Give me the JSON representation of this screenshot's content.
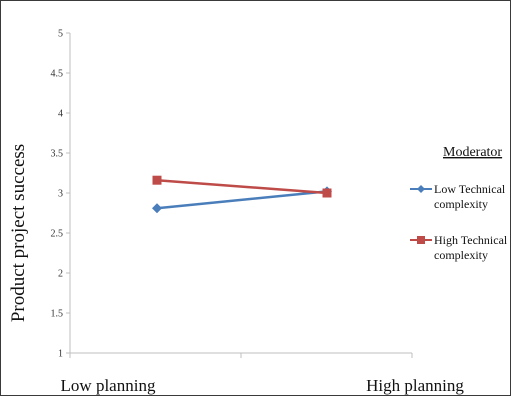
{
  "chart_data": {
    "type": "line",
    "title": "",
    "ylabel": "Product project success",
    "xlabel": "",
    "categories": [
      "Low planning",
      "High planning"
    ],
    "ylim": [
      1,
      5
    ],
    "yticks": [
      "1",
      "1.5",
      "2",
      "2.5",
      "3",
      "3.5",
      "4",
      "4.5",
      "5"
    ],
    "grid": false,
    "legend": {
      "title": "Moderator",
      "placement": "right"
    },
    "series": [
      {
        "name": "Low Technical complexity",
        "name_lines": [
          "Low Technical",
          "complexity"
        ],
        "values": [
          2.81,
          3.02
        ],
        "color": "#4a7ebb",
        "marker": "diamond"
      },
      {
        "name": "High Technical complexity",
        "name_lines": [
          "High Technical",
          "complexity"
        ],
        "values": [
          3.16,
          3.0
        ],
        "color": "#be4b48",
        "marker": "square"
      }
    ]
  }
}
